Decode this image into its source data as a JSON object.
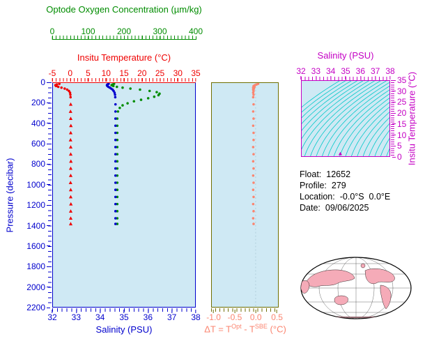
{
  "colors": {
    "oxygen_green": "#008c00",
    "temp_red": "#ef0000",
    "axis_blue": "#0000cd",
    "magenta": "#c400c4",
    "salmon": "#fb8570",
    "olive": "#6e6e00",
    "plot_bg": "#cfe9f4",
    "contour_cyan": "#00c8c8",
    "land_pink": "#f5abb8",
    "map_ocean": "#ffffff"
  },
  "oxygen_axis": {
    "label": "Optode Oxygen Concentration (µm/kg)",
    "ticks": [
      0,
      100,
      200,
      300,
      400
    ],
    "range": [
      0,
      400
    ]
  },
  "temperature_axis": {
    "label": "Insitu Temperature (°C)",
    "ticks": [
      -5,
      0,
      5,
      10,
      15,
      20,
      25,
      30,
      35
    ],
    "range": [
      -5,
      35
    ]
  },
  "pressure_axis": {
    "label": "Pressure (decibar)",
    "ticks": [
      0,
      200,
      400,
      600,
      800,
      1000,
      1200,
      1400,
      1600,
      1800,
      2000,
      2200
    ],
    "range": [
      0,
      2200
    ]
  },
  "salinity_axis": {
    "label": "Salinity (PSU)",
    "ticks": [
      32,
      33,
      34,
      35,
      36,
      37,
      38
    ],
    "range": [
      32,
      38
    ]
  },
  "delta_axis": {
    "ticks": [
      "-1.0",
      "-0.5",
      "0.0",
      "0.5"
    ],
    "range": [
      -1.06,
      0.54
    ],
    "label_parts": {
      "pre": "ΔT = T",
      "sup1": "Opt",
      "mid": " - T",
      "sup2": "SBE",
      "post": " (°C)"
    }
  },
  "ts_axes": {
    "salinity_label": "Salinity (PSU)",
    "salinity_ticks": [
      32,
      33,
      34,
      35,
      36,
      37,
      38
    ],
    "salinity_range": [
      32,
      38
    ],
    "temperature_label": "Insitu Temperature (°C)",
    "temperature_ticks": [
      0,
      5,
      10,
      15,
      20,
      25,
      30,
      35
    ],
    "temperature_range": [
      0,
      35
    ]
  },
  "info": {
    "rows": [
      {
        "label": "Float:",
        "value": "12652"
      },
      {
        "label": "Profile:",
        "value": "279"
      },
      {
        "label": "Location:",
        "value": "-0.0°S  0.0°E"
      },
      {
        "label": "Date:",
        "value": "09/06/2025"
      }
    ]
  },
  "chart_data": [
    {
      "type": "scatter",
      "panel": "profile",
      "ylabel": "Pressure (decibar)",
      "ylim": [
        0,
        2200
      ],
      "series": [
        {
          "name": "Insitu Temperature (°C)",
          "color": "#ef0000",
          "xlim": [
            -5,
            35
          ],
          "triangle_below": 200,
          "points": [
            [
              8,
              -3.2
            ],
            [
              15,
              -3.9
            ],
            [
              22,
              -4.3
            ],
            [
              30,
              -4.1
            ],
            [
              38,
              -3.5
            ],
            [
              46,
              -2.6
            ],
            [
              55,
              -1.7
            ],
            [
              65,
              -1.0
            ],
            [
              78,
              -0.5
            ],
            [
              95,
              -0.2
            ],
            [
              115,
              -0.1
            ],
            [
              140,
              -0.05
            ],
            [
              210,
              0.0
            ],
            [
              280,
              -0.05
            ],
            [
              350,
              0.0
            ],
            [
              420,
              0.05
            ],
            [
              490,
              0.0
            ],
            [
              560,
              -0.05
            ],
            [
              630,
              0.0
            ],
            [
              700,
              0.0
            ],
            [
              770,
              0.05
            ],
            [
              840,
              0.0
            ],
            [
              910,
              0.0
            ],
            [
              980,
              -0.05
            ],
            [
              1050,
              0.0
            ],
            [
              1120,
              0.0
            ],
            [
              1190,
              0.05
            ],
            [
              1260,
              0.0
            ],
            [
              1330,
              0.0
            ],
            [
              1385,
              0.0
            ]
          ]
        },
        {
          "name": "Optode Oxygen Concentration (µm/kg)",
          "color": "#008c00",
          "xlim": [
            0,
            400
          ],
          "points": [
            [
              8,
              172
            ],
            [
              15,
              168
            ],
            [
              22,
              165
            ],
            [
              30,
              170
            ],
            [
              38,
              180
            ],
            [
              46,
              196
            ],
            [
              55,
              218
            ],
            [
              65,
              245
            ],
            [
              78,
              272
            ],
            [
              90,
              292
            ],
            [
              105,
              300
            ],
            [
              120,
              297
            ],
            [
              135,
              285
            ],
            [
              150,
              268
            ],
            [
              165,
              248
            ],
            [
              180,
              228
            ],
            [
              200,
              210
            ],
            [
              220,
              196
            ],
            [
              245,
              188
            ],
            [
              280,
              183
            ],
            [
              350,
              181
            ],
            [
              420,
              181
            ],
            [
              490,
              181
            ],
            [
              560,
              181
            ],
            [
              630,
              181
            ],
            [
              700,
              181
            ],
            [
              770,
              181
            ],
            [
              840,
              181
            ],
            [
              910,
              181
            ],
            [
              980,
              181
            ],
            [
              1050,
              181
            ],
            [
              1120,
              181
            ],
            [
              1190,
              181
            ],
            [
              1260,
              181
            ],
            [
              1330,
              181
            ],
            [
              1385,
              181
            ]
          ]
        },
        {
          "name": "Salinity (PSU)",
          "color": "#0000cd",
          "xlim": [
            32,
            38
          ],
          "points": [
            [
              8,
              34.35
            ],
            [
              15,
              34.3
            ],
            [
              22,
              34.28
            ],
            [
              30,
              34.3
            ],
            [
              38,
              34.34
            ],
            [
              46,
              34.4
            ],
            [
              55,
              34.46
            ],
            [
              65,
              34.52
            ],
            [
              78,
              34.56
            ],
            [
              95,
              34.6
            ],
            [
              115,
              34.62
            ],
            [
              140,
              34.63
            ],
            [
              210,
              34.64
            ],
            [
              280,
              34.64
            ],
            [
              350,
              34.64
            ],
            [
              420,
              34.64
            ],
            [
              490,
              34.64
            ],
            [
              560,
              34.64
            ],
            [
              630,
              34.64
            ],
            [
              700,
              34.64
            ],
            [
              770,
              34.64
            ],
            [
              840,
              34.64
            ],
            [
              910,
              34.64
            ],
            [
              980,
              34.64
            ],
            [
              1050,
              34.64
            ],
            [
              1120,
              34.64
            ],
            [
              1190,
              34.64
            ],
            [
              1260,
              34.64
            ],
            [
              1330,
              34.64
            ],
            [
              1385,
              34.64
            ]
          ]
        }
      ]
    },
    {
      "type": "scatter",
      "panel": "deltaT",
      "xlabel": "ΔT = TOpt - TSBE (°C)",
      "xlim": [
        -1.06,
        0.54
      ],
      "ylim": [
        0,
        2200
      ],
      "gridlines": [
        0.0
      ],
      "series": [
        {
          "name": "ΔT",
          "color": "#fb8570",
          "points": [
            [
              8,
              0.06
            ],
            [
              15,
              0.02
            ],
            [
              22,
              -0.02
            ],
            [
              30,
              -0.05
            ],
            [
              38,
              -0.03
            ],
            [
              46,
              -0.06
            ],
            [
              55,
              -0.04
            ],
            [
              65,
              -0.06
            ],
            [
              78,
              -0.05
            ],
            [
              95,
              -0.06
            ],
            [
              115,
              -0.05
            ],
            [
              140,
              -0.06
            ],
            [
              210,
              -0.05
            ],
            [
              280,
              -0.06
            ],
            [
              350,
              -0.05
            ],
            [
              420,
              -0.06
            ],
            [
              490,
              -0.05
            ],
            [
              560,
              -0.05
            ],
            [
              630,
              -0.06
            ],
            [
              700,
              -0.05
            ],
            [
              770,
              -0.06
            ],
            [
              840,
              -0.05
            ],
            [
              910,
              -0.06
            ],
            [
              980,
              -0.05
            ],
            [
              1050,
              -0.06
            ],
            [
              1120,
              -0.05
            ],
            [
              1190,
              -0.06
            ],
            [
              1260,
              -0.05
            ],
            [
              1330,
              -0.06
            ],
            [
              1385,
              -0.05
            ]
          ]
        }
      ]
    },
    {
      "type": "scatter",
      "panel": "ts",
      "xlabel": "Salinity (PSU)",
      "ylabel": "Insitu Temperature (°C)",
      "xlim": [
        32,
        38
      ],
      "ylim": [
        0,
        35
      ],
      "contours": {
        "s_start": 29.4,
        "s_end": 38.2,
        "s_step": 0.4,
        "a": 0.05,
        "b": 0.0028,
        "color": "#00c8c8"
      },
      "series": [
        {
          "name": "Profile T-S",
          "color": "#c400c4",
          "marker": "triangle",
          "points": [
            [
              34.64,
              0.5
            ]
          ]
        }
      ]
    }
  ]
}
